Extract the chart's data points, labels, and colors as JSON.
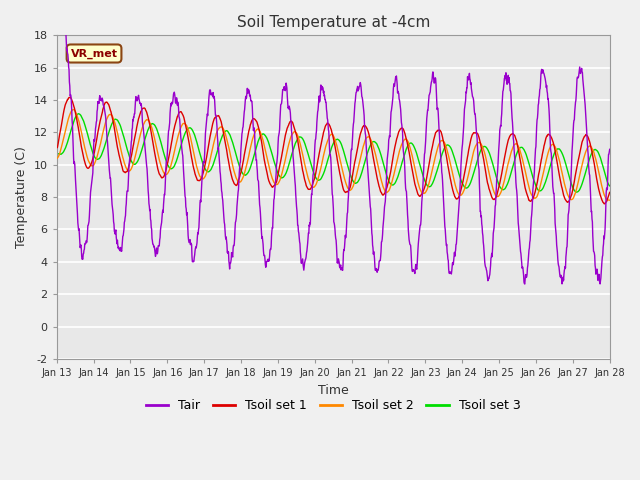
{
  "title": "Soil Temperature at -4cm",
  "xlabel": "Time",
  "ylabel": "Temperature (C)",
  "ylim": [
    -2,
    18
  ],
  "annotation": "VR_met",
  "background_color": "#e8e8e8",
  "fig_facecolor": "#f0f0f0",
  "colors": {
    "Tair": "#9900cc",
    "Tsoil_set1": "#dd0000",
    "Tsoil_set2": "#ff8800",
    "Tsoil_set3": "#00dd00"
  },
  "legend_labels": [
    "Tair",
    "Tsoil set 1",
    "Tsoil set 2",
    "Tsoil set 3"
  ],
  "xtick_labels": [
    "Jan 13",
    "Jan 14",
    "Jan 15",
    "Jan 16",
    "Jan 17",
    "Jan 18",
    "Jan 19",
    "Jan 20",
    "Jan 21",
    "Jan 22",
    "Jan 23",
    "Jan 24",
    "Jan 25",
    "Jan 26",
    "Jan 27",
    "Jan 28"
  ],
  "ytick_labels": [
    "-2",
    "0",
    "2",
    "4",
    "6",
    "8",
    "10",
    "12",
    "14",
    "16",
    "18"
  ],
  "n_points": 1440,
  "n_days": 15
}
